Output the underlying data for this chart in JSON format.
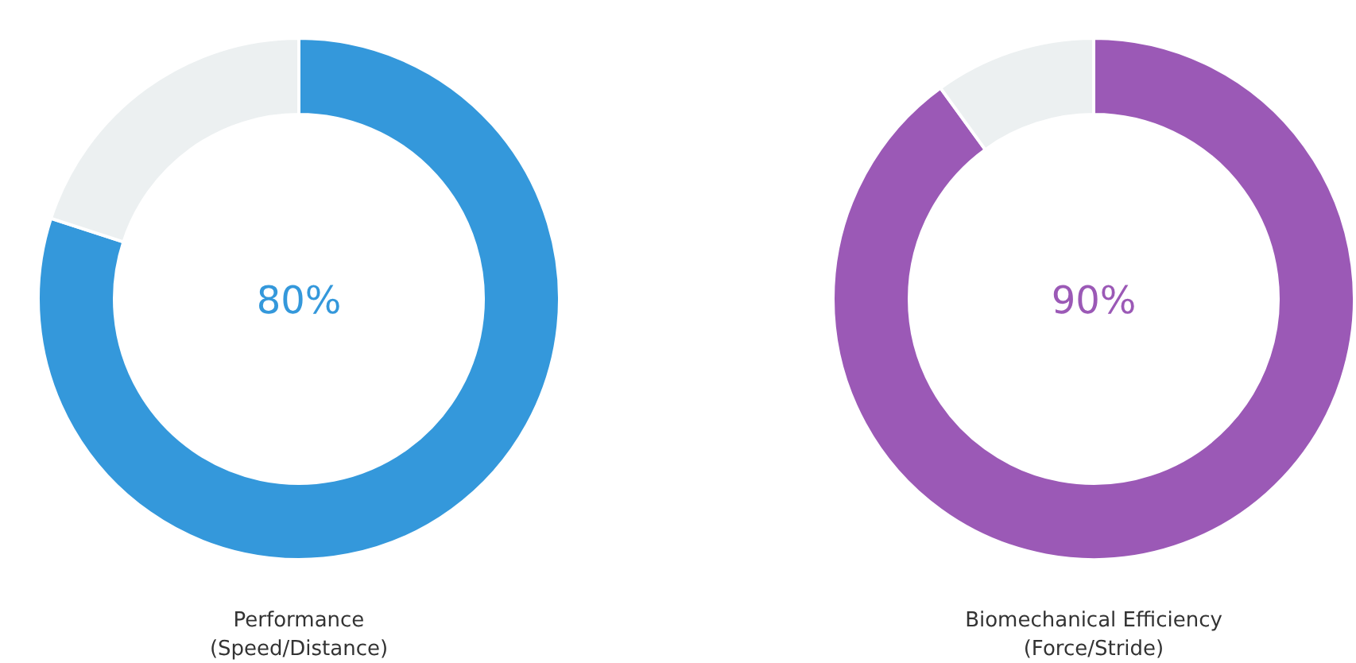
{
  "chart_data": [
    {
      "type": "donut",
      "categories": [
        null,
        null
      ],
      "values": [
        80,
        20
      ],
      "colors": [
        "#3498db",
        "#ecf0f1"
      ],
      "annotations": [
        "80%"
      ],
      "xlabel": "Performance\n(Speed/Distance)"
    },
    {
      "type": "donut",
      "categories": [
        null,
        null
      ],
      "values": [
        90,
        10
      ],
      "colors": [
        "#9b59b6",
        "#ecf0f1"
      ],
      "annotations": [
        "90%"
      ],
      "xlabel": "Biomechanical Efficiency\n(Force/Stride)"
    }
  ]
}
